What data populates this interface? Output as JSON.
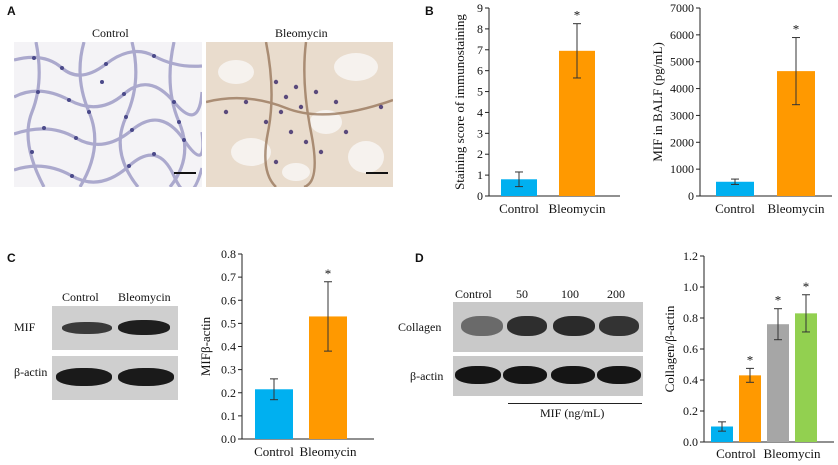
{
  "panels": {
    "a": {
      "label": "A",
      "images": [
        {
          "caption": "Control"
        },
        {
          "caption": "Bleomycin"
        }
      ]
    },
    "b": {
      "label": "B"
    },
    "c": {
      "label": "C",
      "lanes": [
        "Control",
        "Bleomycin"
      ],
      "rows": [
        "MIF",
        "β-actin"
      ]
    },
    "d": {
      "label": "D",
      "lanes": [
        "Control",
        "50",
        "100",
        "200"
      ],
      "rows": [
        "Collagen",
        "β-actin"
      ],
      "treatment_label": "MIF (ng/mL)"
    }
  },
  "colors": {
    "control": "#00b0f0",
    "bleomycin": "#ff9900",
    "gray": "#a6a6a6",
    "green": "#92d050"
  },
  "chart_data": [
    {
      "id": "chart-b1",
      "type": "bar",
      "categories": [
        "Control",
        "Bleomycin"
      ],
      "values": [
        0.8,
        6.95
      ],
      "errors": [
        0.35,
        1.3
      ],
      "significance": [
        "",
        "*"
      ],
      "ylabel": "Staining score of immunostaining",
      "xlabel": "",
      "ylim": [
        0,
        9
      ],
      "yticks": [
        0,
        1,
        2,
        3,
        4,
        5,
        6,
        7,
        8,
        9
      ],
      "colors": [
        "#00b0f0",
        "#ff9900"
      ]
    },
    {
      "id": "chart-b2",
      "type": "bar",
      "categories": [
        "Control",
        "Bleomycin"
      ],
      "values": [
        530,
        4650
      ],
      "errors": [
        100,
        1250
      ],
      "significance": [
        "",
        "*"
      ],
      "ylabel": "MIF in BALF (pg/mL)",
      "xlabel": "",
      "ylim": [
        0,
        7000
      ],
      "yticks": [
        0,
        1000,
        2000,
        3000,
        4000,
        5000,
        6000,
        7000
      ],
      "colors": [
        "#00b0f0",
        "#ff9900"
      ]
    },
    {
      "id": "chart-c",
      "type": "bar",
      "categories": [
        "Control",
        "Bleomycin"
      ],
      "values": [
        0.215,
        0.53
      ],
      "errors": [
        0.045,
        0.15
      ],
      "significance": [
        "",
        "*"
      ],
      "ylabel": "MIFβ-actin",
      "xlabel": "",
      "ylim": [
        0,
        0.8
      ],
      "yticks": [
        "0.0",
        "0.1",
        "0.2",
        "0.3",
        "0.4",
        "0.5",
        "0.6",
        "0.7",
        "0.8"
      ],
      "colors": [
        "#00b0f0",
        "#ff9900"
      ]
    },
    {
      "id": "chart-d",
      "type": "bar",
      "categories": [
        "Control",
        "",
        "Bleomycin",
        ""
      ],
      "values": [
        0.1,
        0.43,
        0.76,
        0.83
      ],
      "errors": [
        0.03,
        0.045,
        0.1,
        0.12
      ],
      "significance": [
        "",
        "*",
        "*",
        "*"
      ],
      "ylabel": "Collagen/β-actin",
      "xlabel": "",
      "ylim": [
        0,
        1.2
      ],
      "yticks": [
        "0.0",
        "0.2",
        "0.4",
        "0.6",
        "0.8",
        "1.0",
        "1.2"
      ],
      "colors": [
        "#00b0f0",
        "#ff9900",
        "#a6a6a6",
        "#92d050"
      ]
    }
  ]
}
